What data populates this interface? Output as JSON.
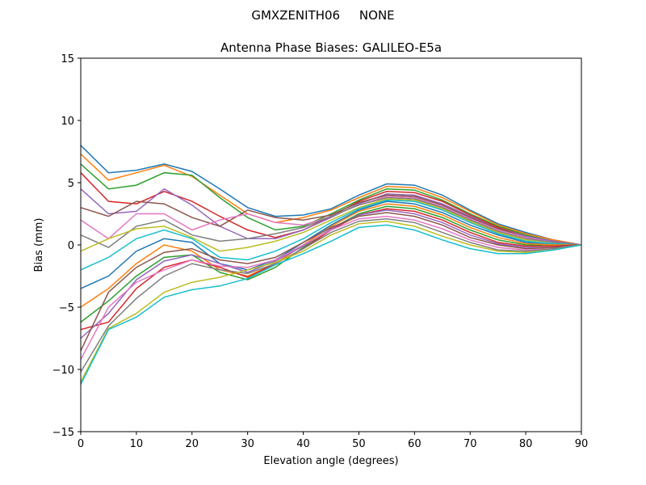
{
  "chart_data": {
    "type": "line",
    "suptitle": "GMXZENITH06     NONE",
    "title": "Antenna Phase Biases: GALILEO-E5a",
    "xlabel": "Elevation angle (degrees)",
    "ylabel": "Bias (mm)",
    "xlim": [
      0,
      90
    ],
    "ylim": [
      -15,
      15
    ],
    "xticks": [
      0,
      10,
      20,
      30,
      40,
      50,
      60,
      70,
      80,
      90
    ],
    "yticks": [
      -15,
      -10,
      -5,
      0,
      5,
      10,
      15
    ],
    "grid": false,
    "colors": [
      "#1f77b4",
      "#ff7f0e",
      "#2ca02c",
      "#d62728",
      "#9467bd",
      "#8c564b",
      "#e377c2",
      "#7f7f7f",
      "#bcbd22",
      "#17becf"
    ],
    "x": [
      0,
      5,
      10,
      15,
      20,
      25,
      30,
      35,
      40,
      45,
      50,
      55,
      60,
      65,
      70,
      75,
      80,
      85,
      90
    ],
    "series": [
      {
        "values": [
          8.0,
          5.8,
          6.0,
          6.5,
          5.9,
          4.5,
          3.0,
          2.3,
          2.4,
          2.9,
          4.0,
          4.9,
          4.8,
          4.0,
          2.8,
          1.7,
          1.0,
          0.4,
          0
        ]
      },
      {
        "values": [
          7.3,
          5.2,
          5.8,
          6.4,
          5.5,
          4.0,
          2.5,
          1.8,
          2.2,
          2.8,
          3.8,
          4.7,
          4.6,
          3.8,
          2.7,
          1.6,
          0.9,
          0.4,
          0
        ]
      },
      {
        "values": [
          6.5,
          4.5,
          4.8,
          5.8,
          5.6,
          3.8,
          2.2,
          1.2,
          1.5,
          2.5,
          3.6,
          4.5,
          4.4,
          3.6,
          2.5,
          1.5,
          0.8,
          0.3,
          0
        ]
      },
      {
        "values": [
          5.8,
          3.5,
          3.3,
          4.3,
          3.5,
          2.3,
          1.2,
          0.6,
          1.2,
          2.3,
          3.5,
          4.3,
          4.2,
          3.5,
          2.4,
          1.4,
          0.7,
          0.3,
          0
        ]
      },
      {
        "values": [
          4.5,
          2.5,
          2.7,
          4.5,
          3.2,
          1.5,
          0.5,
          0.5,
          1.2,
          2.2,
          3.3,
          4.1,
          4.0,
          3.3,
          2.3,
          1.3,
          0.7,
          0.3,
          0
        ]
      },
      {
        "values": [
          3.0,
          2.3,
          3.5,
          3.3,
          2.2,
          1.5,
          2.8,
          2.2,
          2.0,
          2.4,
          3.4,
          4.0,
          3.9,
          3.2,
          2.2,
          1.3,
          0.6,
          0.2,
          0
        ]
      },
      {
        "values": [
          2.0,
          0.5,
          2.5,
          2.5,
          1.2,
          2.0,
          2.5,
          1.8,
          1.6,
          2.3,
          3.2,
          3.9,
          3.8,
          3.1,
          2.1,
          1.2,
          0.6,
          0.2,
          0
        ]
      },
      {
        "values": [
          0.8,
          -0.2,
          1.5,
          2.0,
          0.8,
          0.3,
          0.5,
          0.9,
          1.4,
          2.3,
          3.2,
          3.8,
          3.7,
          3.0,
          2.0,
          1.1,
          0.5,
          0.2,
          0
        ]
      },
      {
        "values": [
          -0.5,
          0.5,
          1.3,
          1.5,
          0.6,
          -0.5,
          -0.2,
          0.3,
          1.0,
          2.0,
          3.0,
          3.7,
          3.6,
          2.9,
          1.9,
          1.0,
          0.4,
          0.1,
          0
        ]
      },
      {
        "values": [
          -2.0,
          -1.0,
          0.5,
          1.2,
          0.5,
          -1.0,
          -1.2,
          -0.5,
          0.5,
          1.8,
          2.9,
          3.6,
          3.5,
          2.8,
          1.8,
          0.9,
          0.3,
          0.1,
          0
        ]
      },
      {
        "values": [
          -3.5,
          -2.5,
          -0.5,
          0.5,
          0.2,
          -1.5,
          -2.0,
          -1.2,
          0.2,
          1.6,
          2.8,
          3.5,
          3.3,
          2.6,
          1.6,
          0.8,
          0.2,
          0.0,
          0
        ]
      },
      {
        "values": [
          -5.0,
          -3.5,
          -1.5,
          0.0,
          -0.5,
          -2.0,
          -2.5,
          -1.5,
          0.0,
          1.5,
          2.7,
          3.3,
          3.1,
          2.4,
          1.4,
          0.6,
          0.1,
          0.0,
          0
        ]
      },
      {
        "values": [
          -6.2,
          -4.5,
          -2.5,
          -1.0,
          -0.8,
          -2.2,
          -2.8,
          -1.8,
          -0.2,
          1.3,
          2.5,
          3.1,
          2.9,
          2.2,
          1.2,
          0.4,
          0.0,
          -0.1,
          0
        ]
      },
      {
        "values": [
          -6.8,
          -6.2,
          -3.5,
          -1.8,
          -1.2,
          -1.8,
          -2.6,
          -1.5,
          -0.3,
          1.2,
          2.4,
          2.9,
          2.7,
          2.0,
          1.0,
          0.2,
          -0.1,
          -0.1,
          0
        ]
      },
      {
        "values": [
          -7.5,
          -5.5,
          -2.8,
          -1.3,
          -0.8,
          -1.5,
          -2.2,
          -1.3,
          -0.1,
          1.3,
          2.4,
          2.8,
          2.5,
          1.8,
          0.8,
          0.1,
          -0.2,
          -0.2,
          0
        ]
      },
      {
        "values": [
          -8.5,
          -3.8,
          -1.8,
          -0.6,
          -0.3,
          -1.2,
          -1.5,
          -1.0,
          0.2,
          1.4,
          2.3,
          2.6,
          2.3,
          1.6,
          0.6,
          0.0,
          -0.3,
          -0.2,
          0
        ]
      },
      {
        "values": [
          -9.2,
          -5.0,
          -3.0,
          -2.0,
          -1.2,
          -1.7,
          -1.8,
          -1.2,
          0.0,
          1.2,
          2.1,
          2.3,
          2.0,
          1.3,
          0.4,
          -0.2,
          -0.4,
          -0.3,
          0
        ]
      },
      {
        "values": [
          -10.2,
          -6.5,
          -4.3,
          -2.5,
          -1.5,
          -2.0,
          -2.3,
          -1.5,
          -0.3,
          1.0,
          1.9,
          2.1,
          1.8,
          1.0,
          0.2,
          -0.4,
          -0.5,
          -0.3,
          0
        ]
      },
      {
        "values": [
          -11.0,
          -6.7,
          -5.5,
          -3.8,
          -3.0,
          -2.6,
          -2.0,
          -1.4,
          -0.5,
          0.8,
          1.7,
          1.9,
          1.5,
          0.7,
          0.0,
          -0.5,
          -0.6,
          -0.4,
          0
        ]
      },
      {
        "values": [
          -11.2,
          -6.8,
          -5.8,
          -4.2,
          -3.6,
          -3.3,
          -2.7,
          -1.6,
          -0.7,
          0.3,
          1.4,
          1.6,
          1.2,
          0.4,
          -0.3,
          -0.7,
          -0.7,
          -0.4,
          0
        ]
      }
    ]
  }
}
